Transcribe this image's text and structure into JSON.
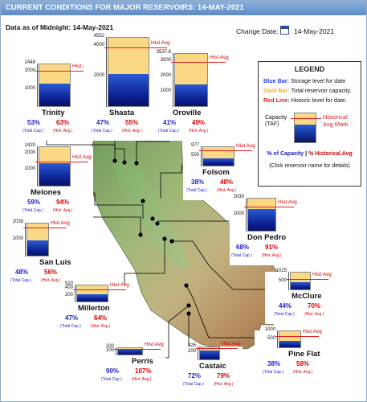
{
  "title": "CURRENT CONDITIONS FOR MAJOR RESERVOIRS: 14-MAY-2021",
  "as_of": "Data as of Midnight: 14-May-2021",
  "change_date_label": "Change Date:",
  "change_date_value": "14-May-2021",
  "colors": {
    "storage": "#0c1e8f",
    "capacity": "#fbd883",
    "avg_line": "#e02020",
    "pct_capacity": "#2020cc",
    "pct_avg": "#d40000"
  },
  "hist_avg_label": "Hist Avg",
  "total_cap_label": "(Total Cap.)",
  "hist_avg_sub_label": "(Hist. Avg.)",
  "reservoirs": [
    {
      "name": "Trinity",
      "pct_capacity": "53%",
      "pct_hist_avg": "63%",
      "capacity_taf": 2448,
      "ticks": [
        "2448",
        "2000",
        "1000"
      ],
      "storage_fraction": 0.53,
      "hist_avg_fraction": 0.84
    },
    {
      "name": "Shasta",
      "pct_capacity": "47%",
      "pct_hist_avg": "55%",
      "capacity_taf": 4552,
      "ticks": [
        "4552",
        "4000",
        "2000"
      ],
      "storage_fraction": 0.47,
      "hist_avg_fraction": 0.85
    },
    {
      "name": "Oroville",
      "pct_capacity": "41%",
      "pct_hist_avg": "49%",
      "capacity_taf": 3537.6,
      "ticks": [
        "3537.6",
        "3000",
        "2000",
        "1000"
      ],
      "storage_fraction": 0.41,
      "hist_avg_fraction": 0.84
    },
    {
      "name": "Folsom",
      "pct_capacity": "38%",
      "pct_hist_avg": "48%",
      "capacity_taf": 977,
      "ticks": [
        "977",
        "500"
      ],
      "storage_fraction": 0.38,
      "hist_avg_fraction": 0.79
    },
    {
      "name": "Melones",
      "pct_capacity": "59%",
      "pct_hist_avg": "94%",
      "capacity_taf": 2420,
      "ticks": [
        "2420",
        "2000",
        "1000"
      ],
      "storage_fraction": 0.59,
      "hist_avg_fraction": 0.63
    },
    {
      "name": "Don Pedro",
      "pct_capacity": "68%",
      "pct_hist_avg": "91%",
      "capacity_taf": 2030,
      "ticks": [
        "2030",
        "1000"
      ],
      "storage_fraction": 0.68,
      "hist_avg_fraction": 0.75
    },
    {
      "name": "San Luis",
      "pct_capacity": "48%",
      "pct_hist_avg": "56%",
      "capacity_taf": 2039,
      "ticks": [
        "2039",
        "1000"
      ],
      "storage_fraction": 0.48,
      "hist_avg_fraction": 0.86
    },
    {
      "name": "Millerton",
      "pct_capacity": "47%",
      "pct_hist_avg": "64%",
      "capacity_taf": 520,
      "ticks": [
        "520",
        "400",
        "200"
      ],
      "storage_fraction": 0.47,
      "hist_avg_fraction": 0.73
    },
    {
      "name": "McClure",
      "pct_capacity": "44%",
      "pct_hist_avg": "70%",
      "capacity_taf": 1025,
      "ticks": [
        "1025",
        "500"
      ],
      "storage_fraction": 0.44,
      "hist_avg_fraction": 0.63
    },
    {
      "name": "Pine Flat",
      "pct_capacity": "38%",
      "pct_hist_avg": "58%",
      "capacity_taf": 1000,
      "ticks": [
        "1000",
        "500"
      ],
      "storage_fraction": 0.38,
      "hist_avg_fraction": 0.66
    },
    {
      "name": "Perris",
      "pct_capacity": "90%",
      "pct_hist_avg": "107%",
      "capacity_taf": 131,
      "ticks": [
        "200",
        "100"
      ],
      "storage_fraction": 0.9,
      "hist_avg_fraction": 0.84
    },
    {
      "name": "Castaic",
      "pct_capacity": "72%",
      "pct_hist_avg": "79%",
      "capacity_taf": 325,
      "ticks": [
        "325",
        "200"
      ],
      "storage_fraction": 0.72,
      "hist_avg_fraction": 0.91
    }
  ],
  "legend": {
    "title": "LEGEND",
    "blue_bar": "Blue Bar:",
    "blue_text": "Storage level for date",
    "gold_bar": "Gold Bar:",
    "gold_text": "Total reservoir capacity.",
    "red_line": "Red Line:",
    "red_text": "Historic level for date.",
    "capacity_label_1": "Capacity",
    "capacity_label_2": "(TAF)",
    "hist_mark_1": "Historical",
    "hist_mark_2": "Avg Mark",
    "pct_capacity": "% of Capacity",
    "separator": "|",
    "pct_hist": "% Historical Avg",
    "click_note": "(Click reservoir name for details)"
  }
}
